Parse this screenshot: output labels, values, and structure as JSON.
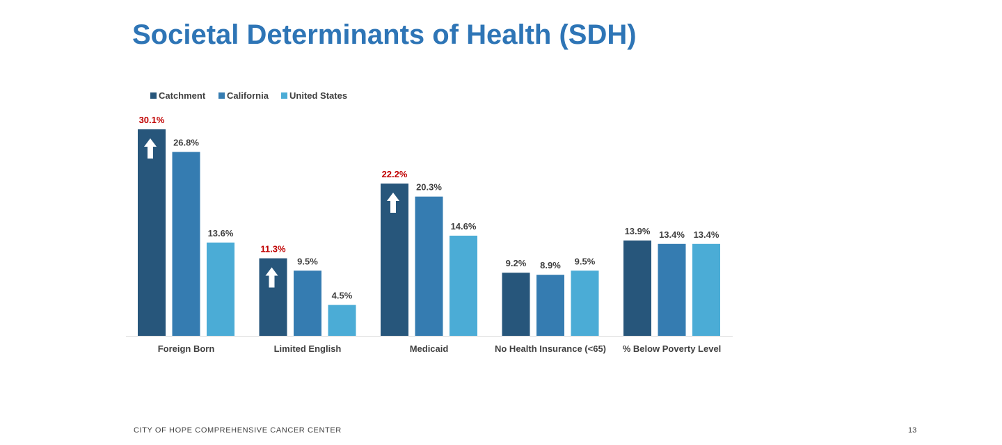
{
  "slide": {
    "title": "Societal Determinants of Health (SDH)",
    "footer": "CITY OF HOPE COMPREHENSIVE CANCER CENTER",
    "page_number": "13"
  },
  "colors": {
    "title": "#2e75b6",
    "highlight_label": "#c00000",
    "axis": "#d9d9d9"
  },
  "chart_data": {
    "type": "bar",
    "title": "",
    "xlabel": "",
    "ylabel": "",
    "ylim": [
      0,
      30.1
    ],
    "grid": false,
    "legend_position": "top-left",
    "categories": [
      "Foreign Born",
      "Limited English",
      "Medicaid",
      "No Health Insurance (<65)",
      "% Below Poverty Level"
    ],
    "series": [
      {
        "name": "Catchment",
        "color": "#27567b",
        "values": [
          30.1,
          11.3,
          22.2,
          9.2,
          13.9
        ],
        "labels": [
          "30.1%",
          "11.3%",
          "22.2%",
          "9.2%",
          "13.9%"
        ],
        "highlight": [
          true,
          true,
          true,
          false,
          false
        ]
      },
      {
        "name": "California",
        "color": "#357cb1",
        "values": [
          26.8,
          9.5,
          20.3,
          8.9,
          13.4
        ],
        "labels": [
          "26.8%",
          "9.5%",
          "20.3%",
          "8.9%",
          "13.4%"
        ],
        "highlight": [
          false,
          false,
          false,
          false,
          false
        ]
      },
      {
        "name": "United States",
        "color": "#4bacd6",
        "values": [
          13.6,
          4.5,
          14.6,
          9.5,
          13.4
        ],
        "labels": [
          "13.6%",
          "4.5%",
          "14.6%",
          "9.5%",
          "13.4%"
        ],
        "highlight": [
          false,
          false,
          false,
          false,
          false
        ]
      }
    ],
    "annotations": [
      {
        "type": "arrow-up-icon",
        "series": 0,
        "category": 0
      },
      {
        "type": "arrow-up-icon",
        "series": 0,
        "category": 1
      },
      {
        "type": "arrow-up-icon",
        "series": 0,
        "category": 2
      }
    ]
  }
}
